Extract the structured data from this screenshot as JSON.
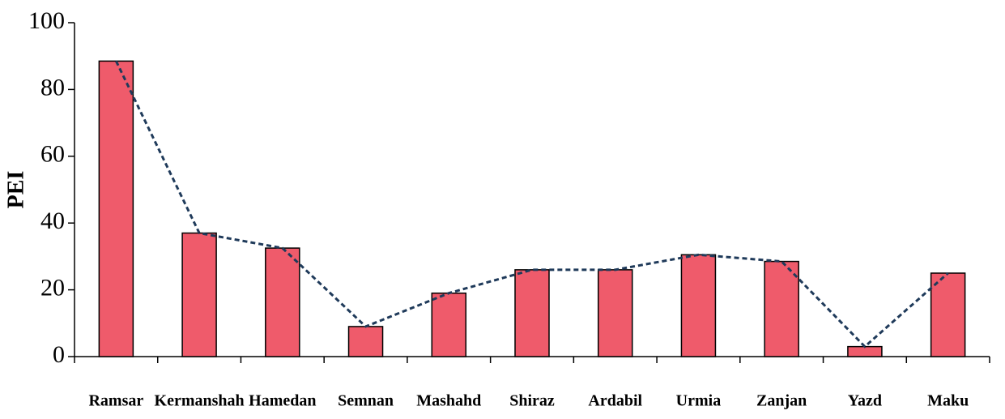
{
  "chart_data": {
    "type": "bar",
    "y_label": "PEI",
    "categories": [
      "Ramsar",
      "Kermanshah",
      "Hamedan",
      "Semnan",
      "Mashahd",
      "Shiraz",
      "Ardabil",
      "Urmia",
      "Zanjan",
      "Yazd",
      "Maku"
    ],
    "values": [
      88.5,
      37,
      32.5,
      9,
      19,
      26,
      26,
      30.5,
      28.5,
      3,
      25
    ],
    "color": "#ef5b6b",
    "line": {
      "color": "#1f3a5a",
      "dashed": true
    },
    "ylim": [
      0,
      100
    ],
    "yticks": [
      0,
      20,
      40,
      60,
      80,
      100
    ]
  }
}
